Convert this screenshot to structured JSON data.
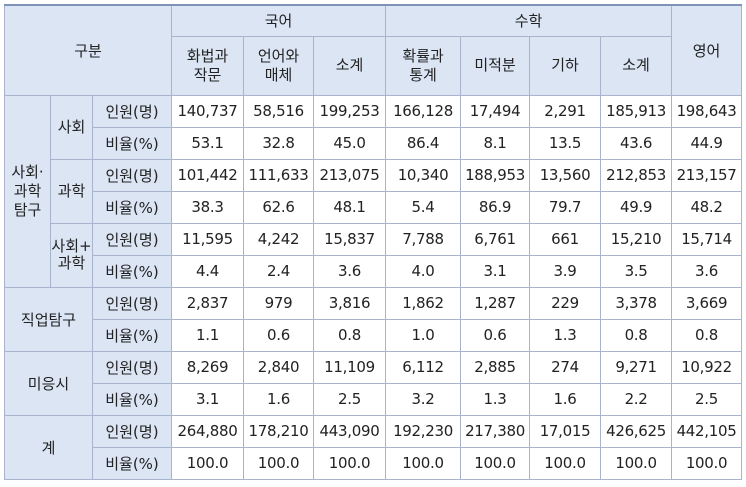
{
  "header": {
    "category": "구분",
    "korean": "국어",
    "math": "수학",
    "english": "영어",
    "korean_subjects": [
      "화법과\n작문",
      "언어와\n매체",
      "소계"
    ],
    "math_subjects": [
      "확률과\n통계",
      "미적분",
      "기하",
      "소계"
    ]
  },
  "labels": {
    "count": "인원(명)",
    "ratio": "비율(%)"
  },
  "groups": {
    "soc_sci": "사회·\n과학\n탐구",
    "social": "사회",
    "science": "과학",
    "social_science": "사회+\n과학",
    "vocational": "직업탐구",
    "none": "미응시",
    "total": "계"
  },
  "rows": {
    "social": {
      "count": [
        "140,737",
        "58,516",
        "199,253",
        "166,128",
        "17,494",
        "2,291",
        "185,913",
        "198,643"
      ],
      "ratio": [
        "53.1",
        "32.8",
        "45.0",
        "86.4",
        "8.1",
        "13.5",
        "43.6",
        "44.9"
      ]
    },
    "science": {
      "count": [
        "101,442",
        "111,633",
        "213,075",
        "10,340",
        "188,953",
        "13,560",
        "212,853",
        "213,157"
      ],
      "ratio": [
        "38.3",
        "62.6",
        "48.1",
        "5.4",
        "86.9",
        "79.7",
        "49.9",
        "48.2"
      ]
    },
    "social_science": {
      "count": [
        "11,595",
        "4,242",
        "15,837",
        "7,788",
        "6,761",
        "661",
        "15,210",
        "15,714"
      ],
      "ratio": [
        "4.4",
        "2.4",
        "3.6",
        "4.0",
        "3.1",
        "3.9",
        "3.5",
        "3.6"
      ]
    },
    "vocational": {
      "count": [
        "2,837",
        "979",
        "3,816",
        "1,862",
        "1,287",
        "229",
        "3,378",
        "3,669"
      ],
      "ratio": [
        "1.1",
        "0.6",
        "0.8",
        "1.0",
        "0.6",
        "1.3",
        "0.8",
        "0.8"
      ]
    },
    "none": {
      "count": [
        "8,269",
        "2,840",
        "11,109",
        "6,112",
        "2,885",
        "274",
        "9,271",
        "10,922"
      ],
      "ratio": [
        "3.1",
        "1.6",
        "2.5",
        "3.2",
        "1.3",
        "1.6",
        "2.2",
        "2.5"
      ]
    },
    "total": {
      "count": [
        "264,880",
        "178,210",
        "443,090",
        "192,230",
        "217,380",
        "17,015",
        "426,625",
        "442,105"
      ],
      "ratio": [
        "100.0",
        "100.0",
        "100.0",
        "100.0",
        "100.0",
        "100.0",
        "100.0",
        "100.0"
      ]
    }
  }
}
